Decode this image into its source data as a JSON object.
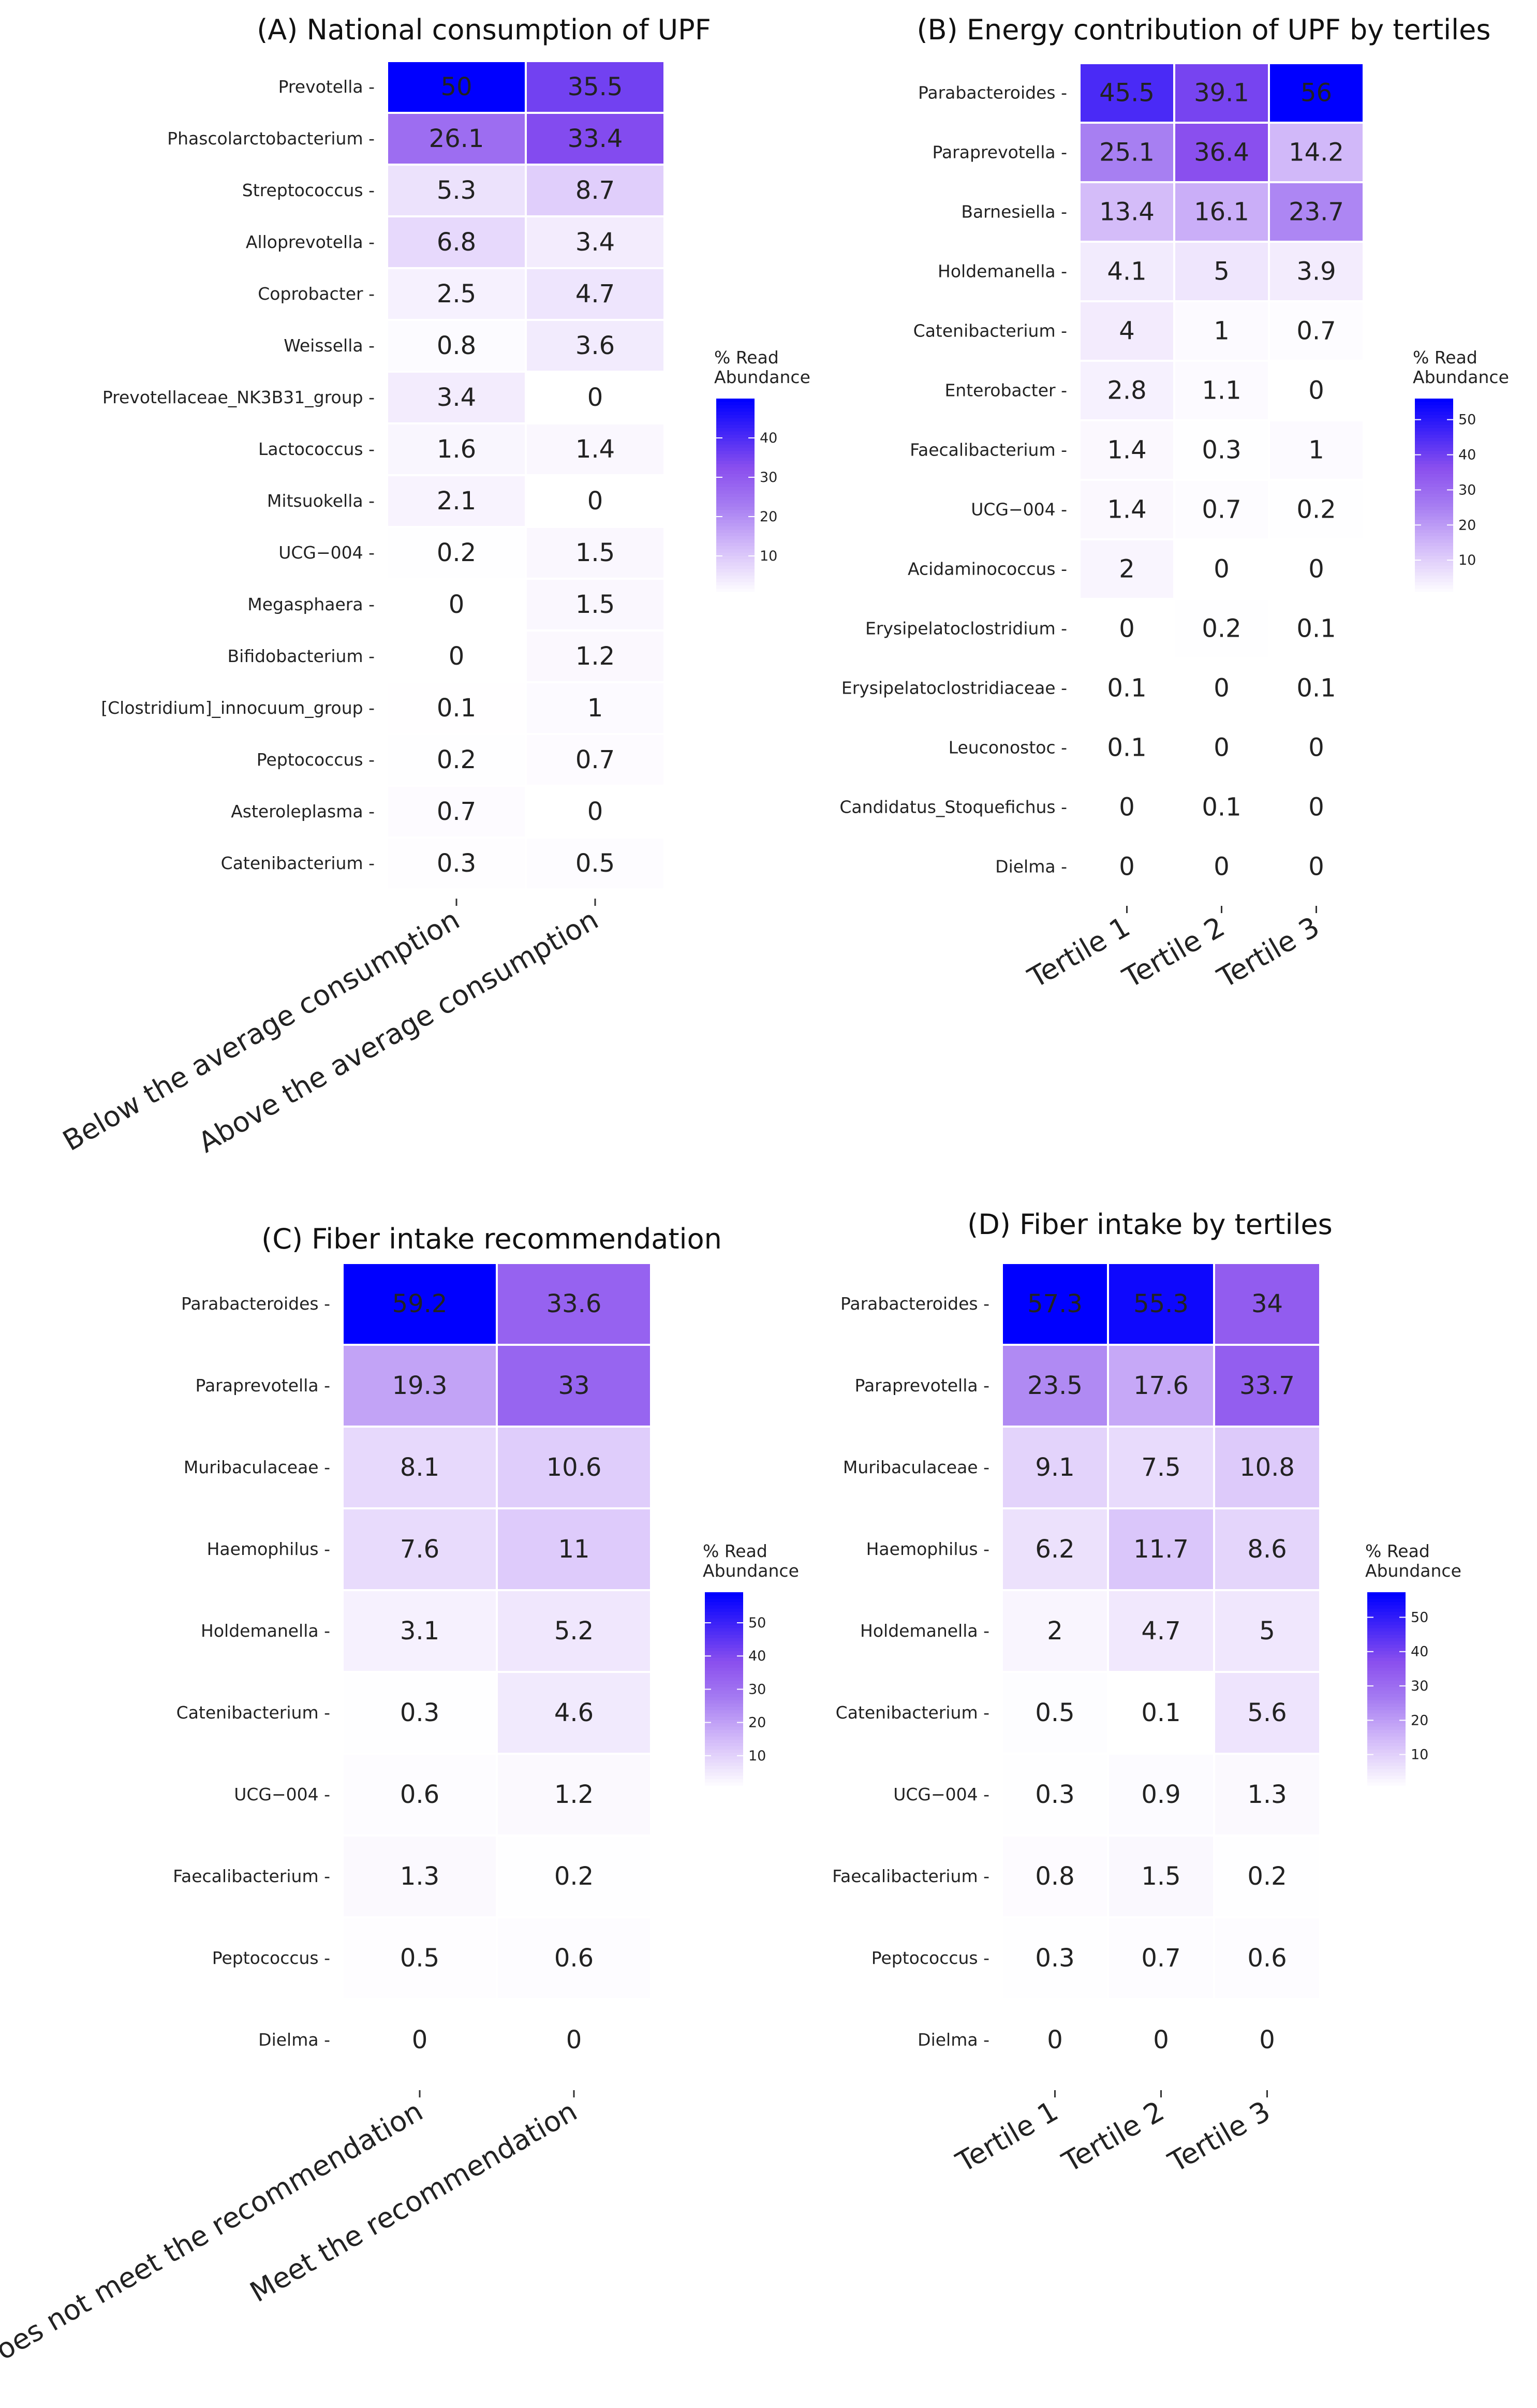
{
  "figure": {
    "legend_title_line1": "% Read",
    "legend_title_line2": "Abundance",
    "color_low": "#ffffff",
    "color_high": "#0000ff"
  },
  "chart_data": [
    {
      "id": "A",
      "type": "heatmap",
      "title": "(A) National consumption of UPF",
      "xlabel": "",
      "ylabel": "",
      "categories_x": [
        "Below the average consumption",
        "Above the average consumption"
      ],
      "categories_y": [
        "Prevotella",
        "Phascolarctobacterium",
        "Streptococcus",
        "Alloprevotella",
        "Coprobacter",
        "Weissella",
        "Prevotellaceae_NK3B31_group",
        "Lactococcus",
        "Mitsuokella",
        "UCG−004",
        "Megasphaera",
        "Bifidobacterium",
        "[Clostridium]_innocuum_group",
        "Peptococcus",
        "Asteroleplasma",
        "Catenibacterium"
      ],
      "values": [
        [
          50,
          35.5
        ],
        [
          26.1,
          33.4
        ],
        [
          5.3,
          8.7
        ],
        [
          6.8,
          3.4
        ],
        [
          2.5,
          4.7
        ],
        [
          0.8,
          3.6
        ],
        [
          3.4,
          0
        ],
        [
          1.6,
          1.4
        ],
        [
          2.1,
          0
        ],
        [
          0.2,
          1.5
        ],
        [
          0,
          1.5
        ],
        [
          0,
          1.2
        ],
        [
          0.1,
          1
        ],
        [
          0.2,
          0.7
        ],
        [
          0.7,
          0
        ],
        [
          0.3,
          0.5
        ]
      ],
      "value_labels": [
        [
          "50",
          "35.5"
        ],
        [
          "26.1",
          "33.4"
        ],
        [
          "5.3",
          "8.7"
        ],
        [
          "6.8",
          "3.4"
        ],
        [
          "2.5",
          "4.7"
        ],
        [
          "0.8",
          "3.6"
        ],
        [
          "3.4",
          "0"
        ],
        [
          "1.6",
          "1.4"
        ],
        [
          "2.1",
          "0"
        ],
        [
          "0.2",
          "1.5"
        ],
        [
          "0",
          "1.5"
        ],
        [
          "0",
          "1.2"
        ],
        [
          "0.1",
          "1"
        ],
        [
          "0.2",
          "0.7"
        ],
        [
          "0.7",
          "0"
        ],
        [
          "0.3",
          "0.5"
        ]
      ],
      "color_max": 50,
      "legend_ticks": [
        "10",
        "20",
        "30",
        "40"
      ],
      "legend_tick_values": [
        10,
        20,
        30,
        40
      ],
      "legend_range": [
        0,
        50
      ]
    },
    {
      "id": "B",
      "type": "heatmap",
      "title": "(B) Energy contribution of UPF by tertiles",
      "xlabel": "",
      "ylabel": "",
      "categories_x": [
        "Tertile 1",
        "Tertile 2",
        "Tertile 3"
      ],
      "categories_y": [
        "Parabacteroides",
        "Paraprevotella",
        "Barnesiella",
        "Holdemanella",
        "Catenibacterium",
        "Enterobacter",
        "Faecalibacterium",
        "UCG−004",
        "Acidaminococcus",
        "Erysipelatoclostridium",
        "Erysipelatoclostridiaceae",
        "Leuconostoc",
        "Candidatus_Stoquefichus",
        "Dielma"
      ],
      "values": [
        [
          45.5,
          39.1,
          56
        ],
        [
          25.1,
          36.4,
          14.2
        ],
        [
          13.4,
          16.1,
          23.7
        ],
        [
          4.1,
          5,
          3.9
        ],
        [
          4,
          1,
          0.7
        ],
        [
          2.8,
          1.1,
          0
        ],
        [
          1.4,
          0.3,
          1
        ],
        [
          1.4,
          0.7,
          0.2
        ],
        [
          2,
          0,
          0
        ],
        [
          0,
          0.2,
          0.1
        ],
        [
          0.1,
          0,
          0.1
        ],
        [
          0.1,
          0,
          0
        ],
        [
          0,
          0.1,
          0
        ],
        [
          0,
          0,
          0
        ]
      ],
      "value_labels": [
        [
          "45.5",
          "39.1",
          "56"
        ],
        [
          "25.1",
          "36.4",
          "14.2"
        ],
        [
          "13.4",
          "16.1",
          "23.7"
        ],
        [
          "4.1",
          "5",
          "3.9"
        ],
        [
          "4",
          "1",
          "0.7"
        ],
        [
          "2.8",
          "1.1",
          "0"
        ],
        [
          "1.4",
          "0.3",
          "1"
        ],
        [
          "1.4",
          "0.7",
          "0.2"
        ],
        [
          "2",
          "0",
          "0"
        ],
        [
          "0",
          "0.2",
          "0.1"
        ],
        [
          "0.1",
          "0",
          "0.1"
        ],
        [
          "0.1",
          "0",
          "0"
        ],
        [
          "0",
          "0.1",
          "0"
        ],
        [
          "0",
          "0",
          "0"
        ]
      ],
      "color_max": 56,
      "legend_ticks": [
        "10",
        "20",
        "30",
        "40",
        "50"
      ],
      "legend_tick_values": [
        10,
        20,
        30,
        40,
        50
      ],
      "legend_range": [
        0,
        56
      ]
    },
    {
      "id": "C",
      "type": "heatmap",
      "title": "(C) Fiber intake recommendation",
      "xlabel": "",
      "ylabel": "",
      "categories_x": [
        "Does not meet the recommendation",
        "Meet the recommendation"
      ],
      "categories_y": [
        "Parabacteroides",
        "Paraprevotella",
        "Muribaculaceae",
        "Haemophilus",
        "Holdemanella",
        "Catenibacterium",
        "UCG−004",
        "Faecalibacterium",
        "Peptococcus",
        "Dielma"
      ],
      "values": [
        [
          59.2,
          33.6
        ],
        [
          19.3,
          33
        ],
        [
          8.1,
          10.6
        ],
        [
          7.6,
          11
        ],
        [
          3.1,
          5.2
        ],
        [
          0.3,
          4.6
        ],
        [
          0.6,
          1.2
        ],
        [
          1.3,
          0.2
        ],
        [
          0.5,
          0.6
        ],
        [
          0,
          0
        ]
      ],
      "value_labels": [
        [
          "59.2",
          "33.6"
        ],
        [
          "19.3",
          "33"
        ],
        [
          "8.1",
          "10.6"
        ],
        [
          "7.6",
          "11"
        ],
        [
          "3.1",
          "5.2"
        ],
        [
          "0.3",
          "4.6"
        ],
        [
          "0.6",
          "1.2"
        ],
        [
          "1.3",
          "0.2"
        ],
        [
          "0.5",
          "0.6"
        ],
        [
          "0",
          "0"
        ]
      ],
      "color_max": 59.2,
      "legend_ticks": [
        "10",
        "20",
        "30",
        "40",
        "50"
      ],
      "legend_tick_values": [
        10,
        20,
        30,
        40,
        50
      ],
      "legend_range": [
        0,
        59.2
      ]
    },
    {
      "id": "D",
      "type": "heatmap",
      "title": "(D) Fiber intake by tertiles",
      "xlabel": "",
      "ylabel": "",
      "categories_x": [
        "Tertile 1",
        "Tertile 2",
        "Tertile 3"
      ],
      "categories_y": [
        "Parabacteroides",
        "Paraprevotella",
        "Muribaculaceae",
        "Haemophilus",
        "Holdemanella",
        "Catenibacterium",
        "UCG−004",
        "Faecalibacterium",
        "Peptococcus",
        "Dielma"
      ],
      "values": [
        [
          57.3,
          55.3,
          34
        ],
        [
          23.5,
          17.6,
          33.7
        ],
        [
          9.1,
          7.5,
          10.8
        ],
        [
          6.2,
          11.7,
          8.6
        ],
        [
          2,
          4.7,
          5
        ],
        [
          0.5,
          0.1,
          5.6
        ],
        [
          0.3,
          0.9,
          1.3
        ],
        [
          0.8,
          1.5,
          0.2
        ],
        [
          0.3,
          0.7,
          0.6
        ],
        [
          0,
          0,
          0
        ]
      ],
      "value_labels": [
        [
          "57.3",
          "55.3",
          "34"
        ],
        [
          "23.5",
          "17.6",
          "33.7"
        ],
        [
          "9.1",
          "7.5",
          "10.8"
        ],
        [
          "6.2",
          "11.7",
          "8.6"
        ],
        [
          "2",
          "4.7",
          "5"
        ],
        [
          "0.5",
          "0.1",
          "5.6"
        ],
        [
          "0.3",
          "0.9",
          "1.3"
        ],
        [
          "0.8",
          "1.5",
          "0.2"
        ],
        [
          "0.3",
          "0.7",
          "0.6"
        ],
        [
          "0",
          "0",
          "0"
        ]
      ],
      "color_max": 57.3,
      "legend_ticks": [
        "10",
        "20",
        "30",
        "40",
        "50"
      ],
      "legend_tick_values": [
        10,
        20,
        30,
        40,
        50
      ],
      "legend_range": [
        0,
        57.3
      ]
    }
  ]
}
